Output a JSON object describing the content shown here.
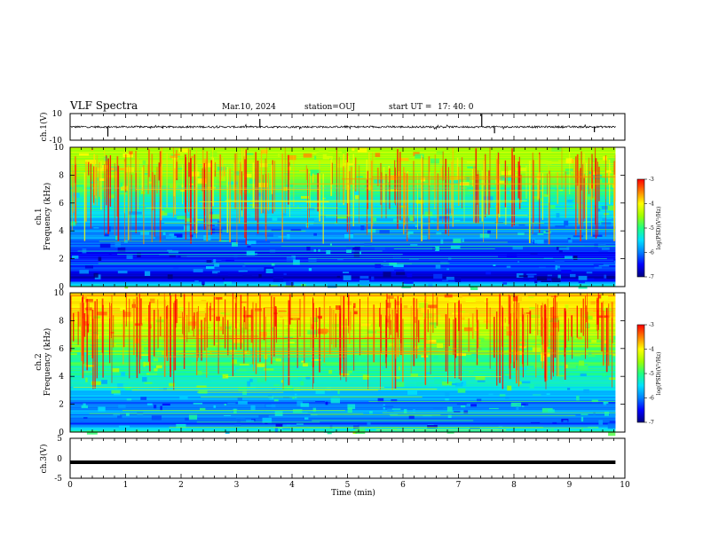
{
  "header": {
    "title": "VLF Spectra",
    "date": "Mar.10, 2024",
    "station": "station=OUJ",
    "start_label": "start  UT  =",
    "start_time": "17: 40: 0"
  },
  "colors": {
    "colormap": [
      "#000080",
      "#0000ff",
      "#0080ff",
      "#00e0ff",
      "#20ff80",
      "#a0ff00",
      "#ffff00",
      "#ff8000",
      "#ff0000",
      "#ffffff"
    ]
  },
  "chart_data": [
    {
      "type": "line",
      "ylabel": "ch.1(V)",
      "ylim": [
        -10,
        10
      ],
      "yticks": [
        "10",
        "-10"
      ],
      "xlim": [
        0,
        10
      ],
      "trace_level_v": 0,
      "spikes": [
        {
          "x": 0.68,
          "y": -1.8
        },
        {
          "x": 3.42,
          "y": 1.5
        },
        {
          "x": 7.42,
          "y": 2.4
        },
        {
          "x": 7.65,
          "y": -1.2
        },
        {
          "x": 9.45,
          "y": -1.0
        }
      ]
    },
    {
      "type": "heatmap",
      "ylabel": "ch.1",
      "ylabel2": "Frequency  (kHz)",
      "ylim": [
        0,
        10
      ],
      "yticks": [
        "0",
        "2",
        "4",
        "6",
        "8",
        "10"
      ],
      "xlim": [
        0,
        10
      ],
      "data_xmax": 9.83,
      "colorbar": {
        "label": "log(PSD)(V²/Hz)",
        "range": [
          -7,
          -3
        ],
        "ticks": [
          "-3",
          "-4",
          "-5",
          "-6",
          "-7"
        ]
      },
      "band_levels": [
        {
          "f": 0.0,
          "level": -4.8
        },
        {
          "f": 0.5,
          "level": -6.8
        },
        {
          "f": 1.0,
          "level": -6.6
        },
        {
          "f": 1.6,
          "level": -6.1
        },
        {
          "f": 2.2,
          "level": -6.5
        },
        {
          "f": 2.8,
          "level": -6.2
        },
        {
          "f": 3.5,
          "level": -5.9
        },
        {
          "f": 4.2,
          "level": -6.0
        },
        {
          "f": 5.0,
          "level": -5.5
        },
        {
          "f": 6.0,
          "level": -5.3
        },
        {
          "f": 7.0,
          "level": -5.0
        },
        {
          "f": 8.0,
          "level": -4.6
        },
        {
          "f": 9.0,
          "level": -4.4
        },
        {
          "f": 10.0,
          "level": -4.3
        }
      ]
    },
    {
      "type": "heatmap",
      "ylabel": "ch.2",
      "ylabel2": "Frequency  (kHz)",
      "ylim": [
        0,
        10
      ],
      "yticks": [
        "0",
        "2",
        "4",
        "6",
        "8",
        "10"
      ],
      "xlim": [
        0,
        10
      ],
      "data_xmax": 9.83,
      "colorbar": {
        "label": "log(PSD)(V²/Hz)",
        "range": [
          -7,
          -3
        ],
        "ticks": [
          "-3",
          "-4",
          "-5",
          "-6",
          "-7"
        ]
      },
      "band_levels": [
        {
          "f": 0.0,
          "level": -4.9
        },
        {
          "f": 0.5,
          "level": -6.2
        },
        {
          "f": 1.0,
          "level": -6.0
        },
        {
          "f": 1.6,
          "level": -5.8
        },
        {
          "f": 2.2,
          "level": -6.0
        },
        {
          "f": 2.8,
          "level": -5.6
        },
        {
          "f": 3.5,
          "level": -5.3
        },
        {
          "f": 4.2,
          "level": -5.2
        },
        {
          "f": 5.0,
          "level": -5.0
        },
        {
          "f": 6.0,
          "level": -4.7
        },
        {
          "f": 7.0,
          "level": -4.4
        },
        {
          "f": 8.0,
          "level": -4.1
        },
        {
          "f": 9.0,
          "level": -3.9
        },
        {
          "f": 10.0,
          "level": -3.8
        }
      ]
    },
    {
      "type": "line",
      "ylabel": "ch.3(V)",
      "ylim": [
        -5,
        5
      ],
      "yticks": [
        "5",
        "0",
        "-5"
      ],
      "xlim": [
        0,
        10
      ],
      "xlabel": "Time  (min)",
      "xticks": [
        "0",
        "1",
        "2",
        "3",
        "4",
        "5",
        "6",
        "7",
        "8",
        "9",
        "10"
      ],
      "trace_level_v": -1.0
    }
  ]
}
